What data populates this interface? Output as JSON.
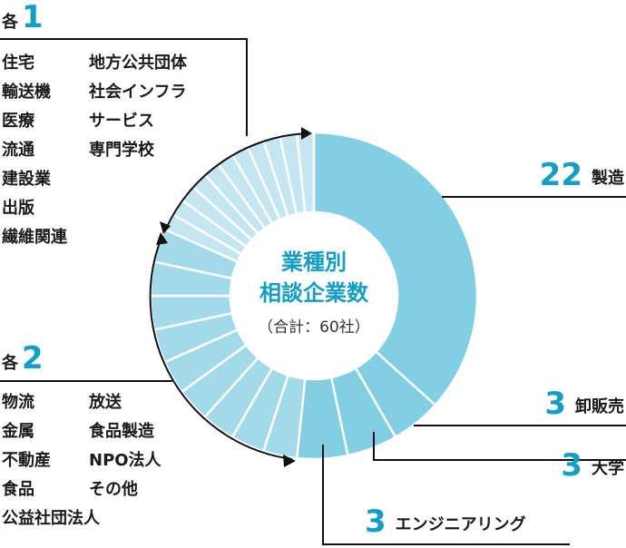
{
  "chart_data": {
    "type": "donut",
    "title": "業種別相談企業数",
    "subtitle": "（合計：60社）",
    "total": 60,
    "center": {
      "line1": "業種別",
      "line2": "相談企業数",
      "note": "（合計：60社）"
    },
    "slices": [
      {
        "label": "製造",
        "value": 22,
        "group": "main"
      },
      {
        "label": "卸販売",
        "value": 3,
        "group": "main"
      },
      {
        "label": "大学",
        "value": 3,
        "group": "main"
      },
      {
        "label": "エンジニアリング",
        "value": 3,
        "group": "main"
      },
      {
        "label": "物流",
        "value": 2,
        "group": "each2"
      },
      {
        "label": "金属",
        "value": 2,
        "group": "each2"
      },
      {
        "label": "不動産",
        "value": 2,
        "group": "each2"
      },
      {
        "label": "食品",
        "value": 2,
        "group": "each2"
      },
      {
        "label": "公益社団法人",
        "value": 2,
        "group": "each2"
      },
      {
        "label": "放送",
        "value": 2,
        "group": "each2"
      },
      {
        "label": "食品製造",
        "value": 2,
        "group": "each2"
      },
      {
        "label": "NPO法人",
        "value": 2,
        "group": "each2"
      },
      {
        "label": "その他",
        "value": 2,
        "group": "each2"
      },
      {
        "label": "住宅",
        "value": 1,
        "group": "each1"
      },
      {
        "label": "輸送機",
        "value": 1,
        "group": "each1"
      },
      {
        "label": "医療",
        "value": 1,
        "group": "each1"
      },
      {
        "label": "流通",
        "value": 1,
        "group": "each1"
      },
      {
        "label": "建設業",
        "value": 1,
        "group": "each1"
      },
      {
        "label": "出版",
        "value": 1,
        "group": "each1"
      },
      {
        "label": "繊維関連",
        "value": 1,
        "group": "each1"
      },
      {
        "label": "地方公共団体",
        "value": 1,
        "group": "each1"
      },
      {
        "label": "社会インフラ",
        "value": 1,
        "group": "each1"
      },
      {
        "label": "サービス",
        "value": 1,
        "group": "each1"
      },
      {
        "label": "専門学校",
        "value": 1,
        "group": "each1"
      }
    ],
    "colors": {
      "main": "#82cee2",
      "each2": "#a3dae9",
      "each1": "#c3e6f1",
      "accent": "#139ec7"
    }
  },
  "groups": {
    "each1": {
      "prefix": "各",
      "count": "1",
      "col1": [
        "住宅",
        "輸送機",
        "医療",
        "流通",
        "建設業",
        "出版",
        "繊維関連"
      ],
      "col2": [
        "地方公共団体",
        "社会インフラ",
        "サービス",
        "専門学校"
      ]
    },
    "each2": {
      "prefix": "各",
      "count": "2",
      "col1": [
        "物流",
        "金属",
        "不動産",
        "食品",
        "公益社団法人"
      ],
      "col2": [
        "放送",
        "食品製造",
        "NPO法人",
        "その他"
      ]
    }
  },
  "callouts": [
    {
      "num": "22",
      "label": "製造"
    },
    {
      "num": "3",
      "label": "卸販売"
    },
    {
      "num": "3",
      "label": "大学"
    },
    {
      "num": "3",
      "label": "エンジニアリング"
    }
  ]
}
